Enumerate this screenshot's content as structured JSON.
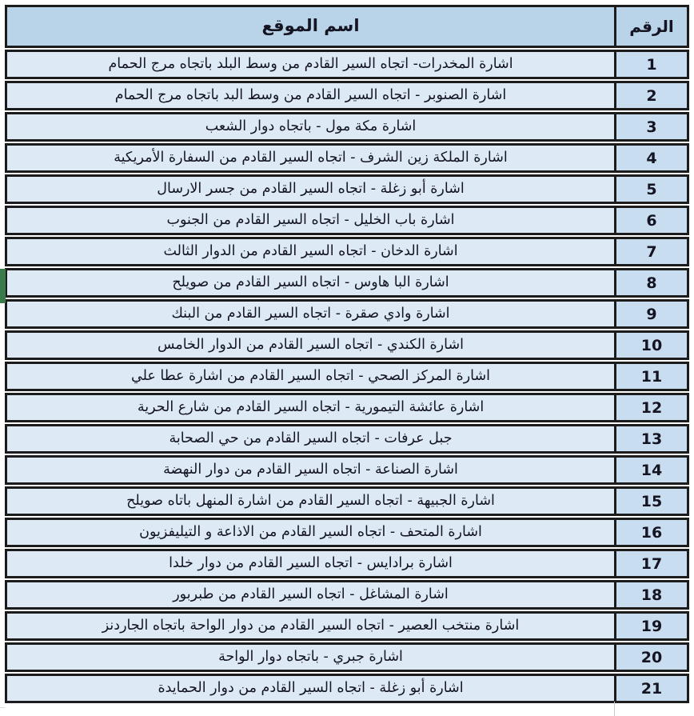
{
  "table": {
    "header": {
      "name_col": "اسم الموقع",
      "num_col": "الرقم"
    },
    "rows": [
      {
        "num": "1",
        "name": "اشارة المخدرات- اتجاه السير القادم من وسط البلد باتجاه مرج الحمام"
      },
      {
        "num": "2",
        "name": "اشارة الصنوبر - اتجاه السير القادم من وسط البد باتجاه مرج الحمام"
      },
      {
        "num": "3",
        "name": "اشارة مكة مول - باتجاه دوار الشعب"
      },
      {
        "num": "4",
        "name": "اشارة الملكة زين الشرف - اتجاه السير القادم من السفارة الأمريكية"
      },
      {
        "num": "5",
        "name": "اشارة أبو زغلة - اتجاه السير القادم من جسر الارسال"
      },
      {
        "num": "6",
        "name": "اشارة باب الخليل - اتجاه السير القادم من الجنوب"
      },
      {
        "num": "7",
        "name": "اشارة الدخان - اتجاه السير القادم من الدوار الثالث"
      },
      {
        "num": "8",
        "name": "اشارة البا هاوس - اتجاه السير القادم من صويلح"
      },
      {
        "num": "9",
        "name": "اشارة وادي صقرة - اتجاه السير القادم من البنك"
      },
      {
        "num": "10",
        "name": "اشارة الكندي - اتجاه السير القادم من الدوار الخامس"
      },
      {
        "num": "11",
        "name": "اشارة المركز الصحي - اتجاه السير القادم من اشارة عطا علي"
      },
      {
        "num": "12",
        "name": "اشارة عائشة التيمورية - اتجاه السير القادم من شارع الحرية"
      },
      {
        "num": "13",
        "name": "جبل عرفات - اتجاه السير القادم من حي الصحابة"
      },
      {
        "num": "14",
        "name": "اشارة الصناعة - اتجاه السير القادم من دوار النهضة"
      },
      {
        "num": "15",
        "name": "اشارة الجبيهة - اتجاه السير القادم من اشارة المنهل باتاه صويلح"
      },
      {
        "num": "16",
        "name": "اشارة المتحف - اتجاه السير القادم من الاذاعة و التيليفزيون"
      },
      {
        "num": "17",
        "name": "اشارة برادايس - اتجاه السير القادم من دوار خلدا"
      },
      {
        "num": "18",
        "name": "اشارة المشاغل - اتجاه السير القادم من طبربور"
      },
      {
        "num": "19",
        "name": "اشارة منتخب العصير - اتجاه السير القادم من دوار الواحة باتجاه الجاردنز"
      },
      {
        "num": "20",
        "name": "اشارة جبري - باتجاه دوار الواحة"
      },
      {
        "num": "21",
        "name": "اشارة أبو زغلة - اتجاه السير القادم من دوار الحمايدة"
      }
    ]
  },
  "colors": {
    "header_bg": "#b9d3e8",
    "name_bg": "#ddeaf6",
    "num_bg": "#c9ddf0",
    "border": "#1c1c1c",
    "text": "#141422",
    "selection_green": "#3a7a4b"
  }
}
